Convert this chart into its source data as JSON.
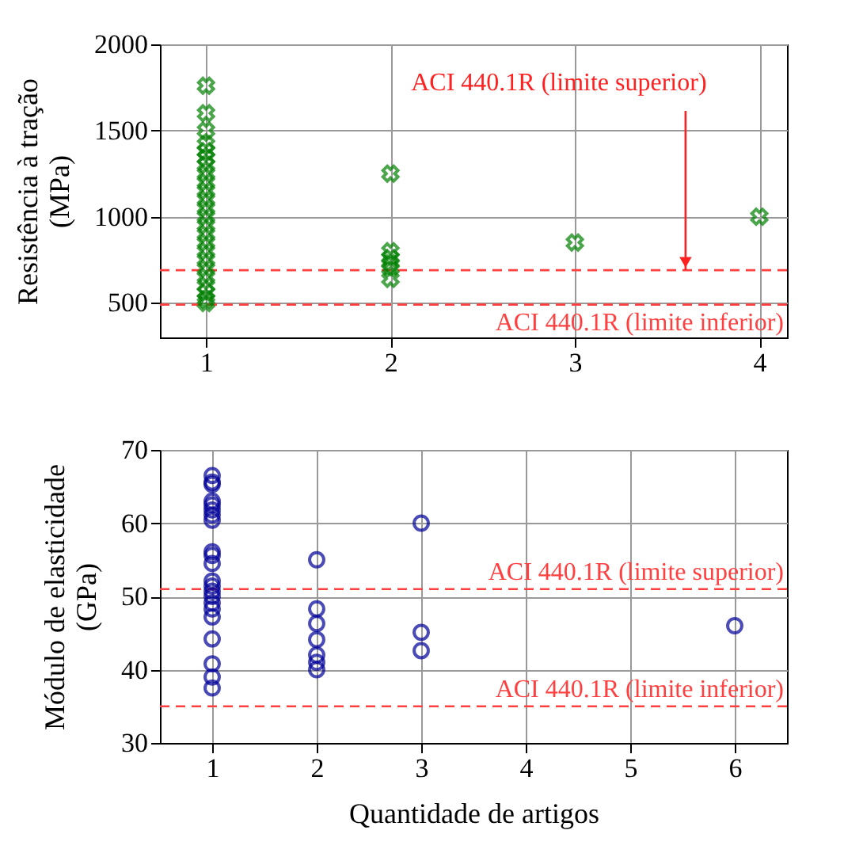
{
  "chart_data": [
    {
      "type": "scatter",
      "ylabel": "Resistência à tração\n(MPa)",
      "xlim": [
        0.75,
        4.15
      ],
      "xticks": [
        1,
        2,
        3,
        4
      ],
      "ylim": [
        300,
        2000
      ],
      "yticks": [
        500,
        1000,
        1500,
        2000
      ],
      "grid": true,
      "marker": "cross",
      "series": [
        {
          "color": "#008000",
          "x": [
            1,
            1,
            1,
            1,
            1,
            1,
            1,
            1,
            1,
            1,
            1,
            1,
            1,
            1,
            1,
            1,
            1,
            1,
            1,
            1,
            1,
            1,
            1,
            1,
            2,
            2,
            2,
            2,
            2,
            2,
            3,
            4
          ],
          "values": [
            1760,
            1600,
            1500,
            1420,
            1380,
            1340,
            1300,
            1250,
            1200,
            1150,
            1100,
            1050,
            1000,
            950,
            900,
            850,
            800,
            750,
            700,
            650,
            600,
            560,
            520,
            500,
            1250,
            800,
            760,
            730,
            700,
            640,
            850,
            1000
          ]
        }
      ],
      "ref_lines": [
        {
          "axis": "y",
          "value": 690,
          "color": "#ff4040",
          "line_style": "dashed"
        },
        {
          "axis": "y",
          "value": 490,
          "label": "ACI 440.1R (limite inferior)",
          "color": "#ff4040",
          "line_style": "dashed"
        }
      ],
      "annotations": [
        {
          "text": "ACI 440.1R (limite superior)",
          "x": 3.6,
          "y": 690
        }
      ]
    },
    {
      "type": "scatter",
      "xlabel": "Quantidade de artigos",
      "ylabel": "Módulo de elasticidade\n(GPa)",
      "xlim": [
        0.5,
        6.5
      ],
      "xticks": [
        1,
        2,
        3,
        4,
        5,
        6
      ],
      "ylim": [
        30,
        70
      ],
      "yticks": [
        30,
        40,
        50,
        60,
        70
      ],
      "grid": true,
      "marker": "circle",
      "series": [
        {
          "color": "#000099",
          "x": [
            1,
            1,
            1,
            1,
            1,
            1,
            1,
            1,
            1,
            1,
            1,
            1,
            1,
            1,
            1,
            1,
            1,
            1,
            1,
            1,
            1,
            1,
            2,
            2,
            2,
            2,
            2,
            2,
            2,
            3,
            3,
            3,
            6
          ],
          "values": [
            66.5,
            65.6,
            65.3,
            63.0,
            62.5,
            61.8,
            61.1,
            60.4,
            56.1,
            55.6,
            54.5,
            52.1,
            51.4,
            50.7,
            50.0,
            49.1,
            48.3,
            47.2,
            44.2,
            40.8,
            39.0,
            37.5,
            55.0,
            48.3,
            46.3,
            44.1,
            42.0,
            41.0,
            40.0,
            60.0,
            45.1,
            42.6,
            46.0
          ]
        }
      ],
      "ref_lines": [
        {
          "axis": "y",
          "value": 51,
          "label": "ACI 440.1R (limite superior)",
          "color": "#ff4040",
          "line_style": "dashed"
        },
        {
          "axis": "y",
          "value": 35,
          "label": "ACI 440.1R (limite inferior)",
          "color": "#ff4040",
          "line_style": "dashed"
        }
      ]
    }
  ]
}
